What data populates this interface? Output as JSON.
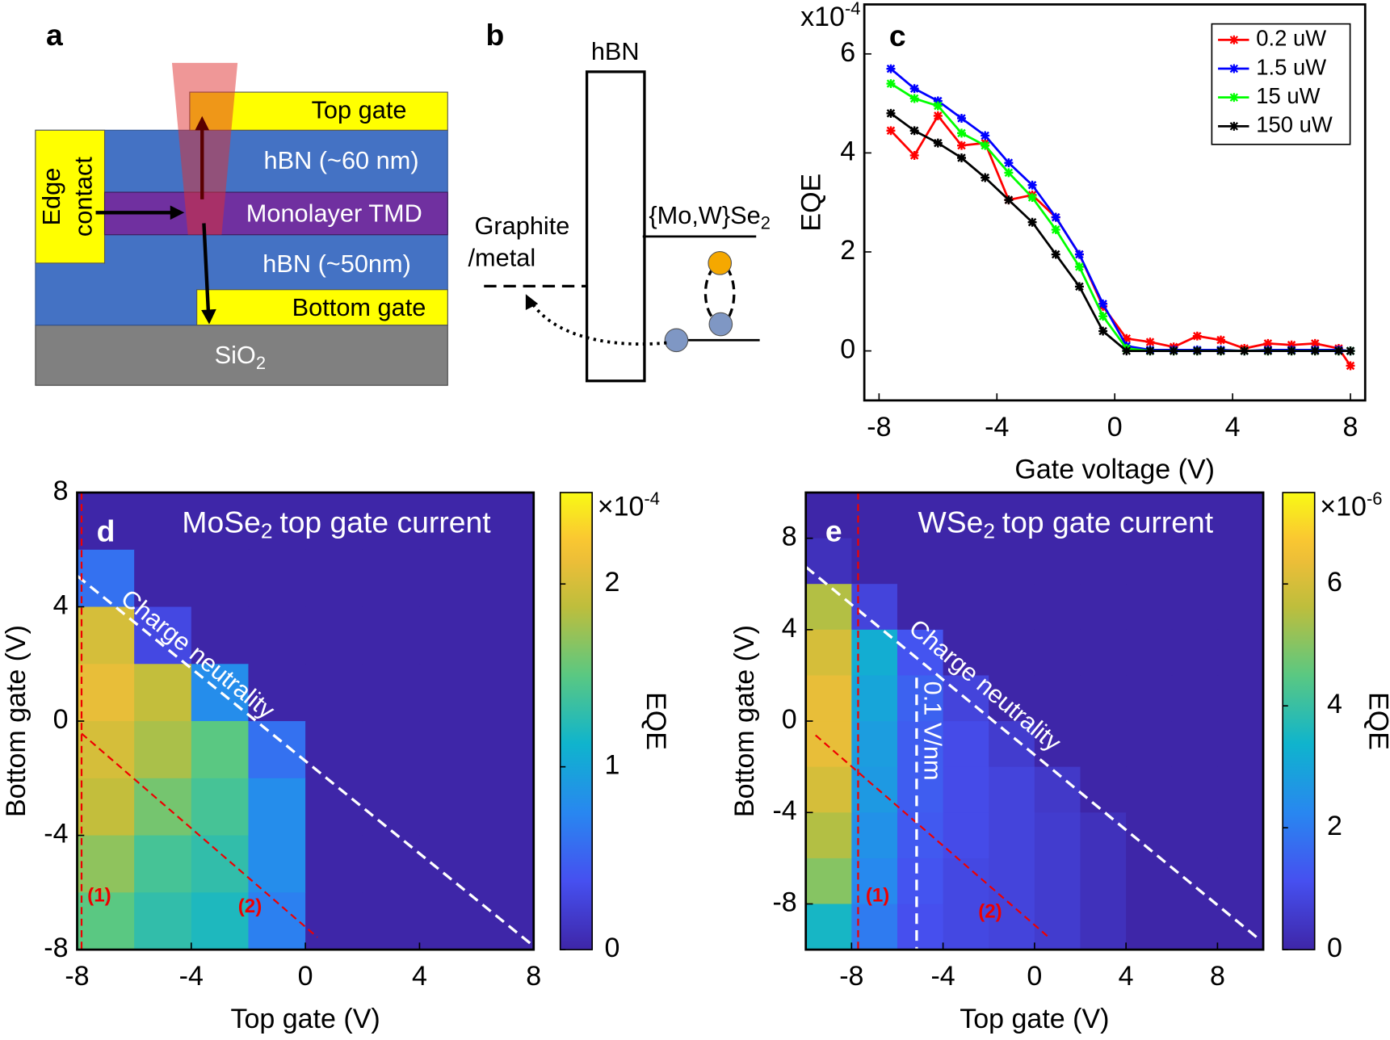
{
  "panel_a": {
    "letter": "a",
    "top_gate": "Top gate",
    "hbn_top": "hBN (~60 nm)",
    "edge": "Edge",
    "contact": "contact",
    "tmd": "Monolayer TMD",
    "hbn_bottom": "hBN (~50nm)",
    "bottom_gate": "Bottom gate",
    "substrate": "SiO",
    "substrate_sub": "2"
  },
  "panel_b": {
    "letter": "b",
    "barrier": "hBN",
    "tmd": "{Mo,W}Se",
    "tmd_sub": "2",
    "metal_1": "Graphite",
    "metal_2": "/metal"
  },
  "chart_data": [
    {
      "type": "line",
      "letter": "c",
      "xlabel": "Gate voltage (V)",
      "ylabel": "EQE",
      "scale_base": "x10",
      "scale_exponent": "-4",
      "xlim": [
        -8.5,
        8.5
      ],
      "ylim": [
        -1,
        7
      ],
      "xticks": [
        -8,
        -4,
        0,
        4,
        8
      ],
      "yticks": [
        0,
        2,
        4,
        6
      ],
      "legend": "upper right",
      "x": [
        -7.6,
        -6.8,
        -6.0,
        -5.2,
        -4.4,
        -3.6,
        -2.8,
        -2.0,
        -1.2,
        -0.4,
        0.4,
        1.2,
        2.0,
        2.8,
        3.6,
        4.4,
        5.2,
        6.0,
        6.8,
        7.6,
        8.0
      ],
      "series": [
        {
          "name": "0.2 uW",
          "color": "#ff0000",
          "values": [
            4.45,
            3.95,
            4.75,
            4.15,
            4.2,
            3.05,
            3.15,
            2.7,
            1.95,
            0.9,
            0.25,
            0.18,
            0.08,
            0.3,
            0.22,
            0.05,
            0.15,
            0.12,
            0.15,
            0.05,
            -0.3
          ]
        },
        {
          "name": "1.5 uW",
          "color": "#0000ff",
          "values": [
            5.7,
            5.3,
            5.05,
            4.7,
            4.35,
            3.8,
            3.35,
            2.7,
            1.95,
            0.95,
            0.1,
            0.02,
            0.02,
            0.02,
            0.02,
            0.0,
            0.02,
            0.02,
            0.02,
            0.02,
            0.0
          ]
        },
        {
          "name": "15 uW",
          "color": "#00ff00",
          "values": [
            5.4,
            5.1,
            4.95,
            4.4,
            4.15,
            3.6,
            3.1,
            2.45,
            1.7,
            0.7,
            0.05,
            0,
            0,
            0,
            0,
            0,
            0,
            0,
            0,
            0,
            0
          ]
        },
        {
          "name": "150 uW",
          "color": "#000000",
          "values": [
            4.8,
            4.45,
            4.2,
            3.9,
            3.5,
            3.05,
            2.6,
            1.95,
            1.3,
            0.4,
            0,
            0,
            0,
            0,
            0,
            0,
            0,
            0,
            0,
            0,
            0
          ]
        }
      ]
    },
    {
      "type": "heatmap",
      "letter": "d",
      "title": "MoSe",
      "title_sub": "2",
      "title_rest": "top gate current",
      "xlabel": "Top gate (V)",
      "ylabel": "Bottom gate (V)",
      "colorbar_label": "EQE",
      "scale_base": "×10",
      "scale_exponent": "-4",
      "xlim": [
        -8,
        8
      ],
      "ylim": [
        -8,
        8
      ],
      "xticks": [
        -8,
        -4,
        0,
        4,
        8
      ],
      "yticks": [
        -8,
        -4,
        0,
        4,
        8
      ],
      "clim": [
        0,
        2.5
      ],
      "cticks": [
        0,
        1,
        2
      ],
      "z": [
        [
          0,
          0,
          0,
          0,
          0,
          0,
          0,
          0
        ],
        [
          0.6,
          0,
          0,
          0,
          0,
          0,
          0,
          0
        ],
        [
          2.0,
          0.3,
          0,
          0,
          0,
          0,
          0,
          0
        ],
        [
          2.1,
          1.9,
          0.8,
          0,
          0,
          0,
          0,
          0
        ],
        [
          2.0,
          1.8,
          1.5,
          0.6,
          0,
          0,
          0,
          0
        ],
        [
          1.9,
          1.6,
          1.4,
          0.8,
          0,
          0,
          0,
          0
        ],
        [
          1.7,
          1.4,
          1.3,
          0.8,
          0,
          0,
          0,
          0
        ],
        [
          1.5,
          1.3,
          1.2,
          0.7,
          0,
          0,
          0,
          0
        ]
      ],
      "annotations": {
        "neutrality": "Charge neutrality",
        "line_1": "(1)",
        "line_2": "(2)"
      }
    },
    {
      "type": "heatmap",
      "letter": "e",
      "title": "WSe",
      "title_sub": "2",
      "title_rest": "top gate current",
      "xlabel": "Top gate (V)",
      "ylabel": "Bottom gate (V)",
      "colorbar_label": "EQE",
      "scale_base": "×10",
      "scale_exponent": "-6",
      "xlim": [
        -10,
        10
      ],
      "ylim": [
        -10,
        10
      ],
      "xticks": [
        -8,
        -4,
        0,
        4,
        8
      ],
      "yticks": [
        -8,
        -4,
        0,
        4,
        8
      ],
      "clim": [
        0,
        7.5
      ],
      "cticks": [
        0,
        2,
        4,
        6
      ],
      "z": [
        [
          0,
          0,
          0,
          0,
          0,
          0,
          0,
          0,
          0,
          0
        ],
        [
          0.3,
          0,
          0,
          0,
          0,
          0,
          0,
          0,
          0,
          0
        ],
        [
          5.5,
          0.8,
          0,
          0,
          0,
          0,
          0,
          0,
          0,
          0
        ],
        [
          6.0,
          3.2,
          1.2,
          0,
          0,
          0,
          0,
          0,
          0,
          0
        ],
        [
          6.3,
          3.0,
          1.5,
          0.8,
          0,
          0,
          0,
          0,
          0,
          0
        ],
        [
          6.3,
          2.8,
          1.4,
          1.0,
          0.6,
          0,
          0,
          0,
          0,
          0
        ],
        [
          6.0,
          2.7,
          1.4,
          1.0,
          0.8,
          0.5,
          0,
          0,
          0,
          0
        ],
        [
          5.5,
          2.5,
          1.3,
          1.0,
          0.8,
          0.6,
          0.3,
          0,
          0,
          0
        ],
        [
          5.0,
          2.3,
          1.2,
          0.9,
          0.8,
          0.6,
          0.3,
          0,
          0,
          0
        ],
        [
          3.5,
          2.0,
          1.1,
          0.9,
          0.8,
          0.6,
          0.3,
          0,
          0,
          0
        ]
      ],
      "annotations": {
        "neutrality": "Charge neutrality",
        "line_1": "(1)",
        "line_2": "(2)",
        "field": "0.1 V/nm"
      }
    }
  ]
}
